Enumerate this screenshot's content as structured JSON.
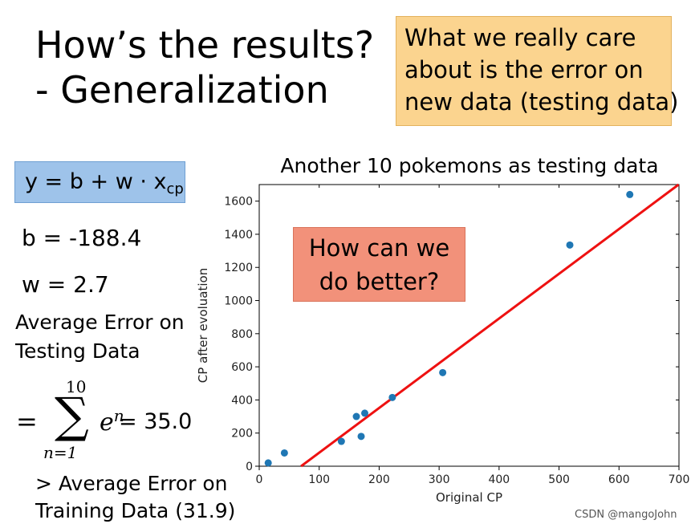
{
  "slide": {
    "title_line1": "How’s the results?",
    "title_line2": "- Generalization",
    "callout_top": [
      "What we really care",
      "about is the error on",
      "new data (testing data)"
    ],
    "formula": {
      "prefix": "y = b + w · x",
      "subscript": "cp"
    },
    "b_label": "b = -188.4",
    "w_label": "w = 2.7",
    "avg_test": [
      "Average Error on",
      "Testing Data"
    ],
    "sum": {
      "eq": "=",
      "upper": "10",
      "sigma": "∑",
      "lower": "n=1",
      "term_base": "e",
      "term_sup": "n",
      "value": "= 35.0"
    },
    "avg_train": [
      "> Average Error on",
      "Training Data (31.9)"
    ],
    "callout_mid": [
      "How can we",
      "do better?"
    ],
    "watermark": "CSDN @mangoJohn"
  },
  "colors": {
    "point": "#1f77b4",
    "line": "#ee1111",
    "callout_top_bg": "#fbd48f",
    "formula_bg": "#9ec3ea",
    "callout_mid_bg": "#f2917a"
  },
  "chart_data": {
    "type": "scatter",
    "title": "Another 10 pokemons as testing data",
    "xlabel": "Original CP",
    "ylabel": "CP after evoluation",
    "xlim": [
      0,
      700
    ],
    "ylim": [
      0,
      1700
    ],
    "xticks": [
      0,
      100,
      200,
      300,
      400,
      500,
      600,
      700
    ],
    "yticks": [
      0,
      200,
      400,
      600,
      800,
      1000,
      1200,
      1400,
      1600
    ],
    "points": [
      {
        "x": 15,
        "y": 20
      },
      {
        "x": 42,
        "y": 80
      },
      {
        "x": 137,
        "y": 150
      },
      {
        "x": 162,
        "y": 300
      },
      {
        "x": 170,
        "y": 180
      },
      {
        "x": 176,
        "y": 320
      },
      {
        "x": 222,
        "y": 415
      },
      {
        "x": 306,
        "y": 565
      },
      {
        "x": 518,
        "y": 1335
      },
      {
        "x": 618,
        "y": 1640
      }
    ],
    "line": {
      "b": -188.4,
      "w": 2.7
    },
    "grid": false
  }
}
